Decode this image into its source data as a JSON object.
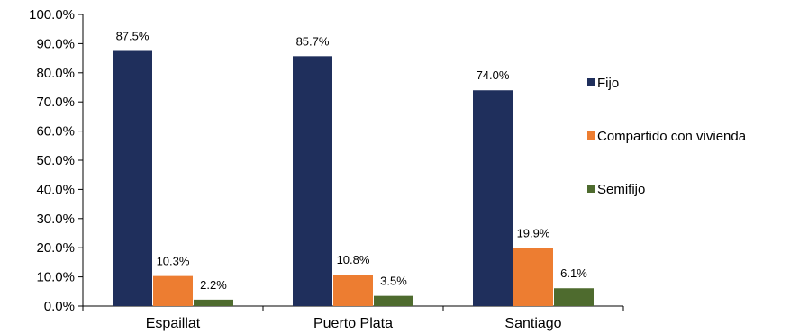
{
  "chart_data": {
    "type": "bar",
    "categories": [
      "Espaillat",
      "Puerto Plata",
      "Santiago"
    ],
    "series": [
      {
        "name": "Fijo",
        "values": [
          87.5,
          85.7,
          74.0
        ],
        "labels": [
          "87.5%",
          "85.7%",
          "74.0%"
        ],
        "color": "#1f2f5c"
      },
      {
        "name": "Compartido con vivienda",
        "values": [
          10.3,
          10.8,
          19.9
        ],
        "labels": [
          "10.3%",
          "10.8%",
          "19.9%"
        ],
        "color": "#ed7d31"
      },
      {
        "name": "Semifijo",
        "values": [
          2.2,
          3.5,
          6.1
        ],
        "labels": [
          "2.2%",
          "3.5%",
          "6.1%"
        ],
        "color": "#4e6b2e"
      }
    ],
    "ylim": [
      0,
      100
    ],
    "yticks": [
      "0.0%",
      "10.0%",
      "20.0%",
      "30.0%",
      "40.0%",
      "50.0%",
      "60.0%",
      "70.0%",
      "80.0%",
      "90.0%",
      "100.0%"
    ],
    "grid": false,
    "legend_position": "right"
  }
}
